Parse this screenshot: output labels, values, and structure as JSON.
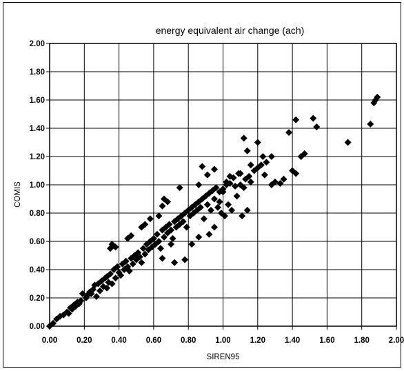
{
  "chart_data": {
    "type": "scatter",
    "title": "energy equivalent air change (ach)",
    "xlabel": "SIREN95",
    "ylabel": "COMIS",
    "xlim": [
      0,
      2.0
    ],
    "ylim": [
      0,
      2.0
    ],
    "x_ticks": [
      "0.00",
      "0.20",
      "0.40",
      "0.60",
      "0.80",
      "1.00",
      "1.20",
      "1.40",
      "1.60",
      "1.80",
      "2.00"
    ],
    "y_ticks": [
      "0.00",
      "0.20",
      "0.40",
      "0.60",
      "0.80",
      "1.00",
      "1.20",
      "1.40",
      "1.60",
      "1.80",
      "2.00"
    ],
    "grid": true,
    "legend": "none",
    "marker": "diamond",
    "marker_color": "#000000",
    "series": [
      {
        "points": [
          [
            0.0,
            0.0
          ],
          [
            0.02,
            0.02
          ],
          [
            0.04,
            0.05
          ],
          [
            0.06,
            0.07
          ],
          [
            0.08,
            0.08
          ],
          [
            0.1,
            0.1
          ],
          [
            0.12,
            0.13
          ],
          [
            0.14,
            0.15
          ],
          [
            0.16,
            0.17
          ],
          [
            0.18,
            0.18
          ],
          [
            0.19,
            0.23
          ],
          [
            0.21,
            0.2
          ],
          [
            0.23,
            0.24
          ],
          [
            0.25,
            0.26
          ],
          [
            0.27,
            0.21
          ],
          [
            0.28,
            0.3
          ],
          [
            0.3,
            0.32
          ],
          [
            0.31,
            0.28
          ],
          [
            0.33,
            0.35
          ],
          [
            0.34,
            0.31
          ],
          [
            0.35,
            0.37
          ],
          [
            0.36,
            0.3
          ],
          [
            0.37,
            0.4
          ],
          [
            0.38,
            0.34
          ],
          [
            0.39,
            0.42
          ],
          [
            0.4,
            0.38
          ],
          [
            0.41,
            0.36
          ],
          [
            0.42,
            0.44
          ],
          [
            0.43,
            0.4
          ],
          [
            0.44,
            0.46
          ],
          [
            0.45,
            0.42
          ],
          [
            0.46,
            0.39
          ],
          [
            0.47,
            0.48
          ],
          [
            0.48,
            0.44
          ],
          [
            0.49,
            0.5
          ],
          [
            0.5,
            0.47
          ],
          [
            0.51,
            0.52
          ],
          [
            0.52,
            0.49
          ],
          [
            0.53,
            0.45
          ],
          [
            0.54,
            0.55
          ],
          [
            0.55,
            0.51
          ],
          [
            0.56,
            0.58
          ],
          [
            0.57,
            0.54
          ],
          [
            0.58,
            0.6
          ],
          [
            0.59,
            0.56
          ],
          [
            0.6,
            0.62
          ],
          [
            0.61,
            0.58
          ],
          [
            0.62,
            0.65
          ],
          [
            0.63,
            0.6
          ],
          [
            0.64,
            0.55
          ],
          [
            0.65,
            0.68
          ],
          [
            0.66,
            0.63
          ],
          [
            0.67,
            0.7
          ],
          [
            0.68,
            0.66
          ],
          [
            0.69,
            0.72
          ],
          [
            0.7,
            0.68
          ],
          [
            0.71,
            0.62
          ],
          [
            0.72,
            0.74
          ],
          [
            0.73,
            0.7
          ],
          [
            0.74,
            0.76
          ],
          [
            0.75,
            0.72
          ],
          [
            0.76,
            0.78
          ],
          [
            0.77,
            0.74
          ],
          [
            0.78,
            0.8
          ],
          [
            0.79,
            0.7
          ],
          [
            0.8,
            0.82
          ],
          [
            0.81,
            0.78
          ],
          [
            0.82,
            0.84
          ],
          [
            0.83,
            0.8
          ],
          [
            0.84,
            0.86
          ],
          [
            0.85,
            0.82
          ],
          [
            0.86,
            0.88
          ],
          [
            0.87,
            0.84
          ],
          [
            0.88,
            0.9
          ],
          [
            0.89,
            0.76
          ],
          [
            0.9,
            0.92
          ],
          [
            0.91,
            0.86
          ],
          [
            0.92,
            0.94
          ],
          [
            0.93,
            0.82
          ],
          [
            0.94,
            0.96
          ],
          [
            0.95,
            0.9
          ],
          [
            0.96,
            0.98
          ],
          [
            0.97,
            0.84
          ],
          [
            0.98,
            0.88
          ],
          [
            0.99,
            0.8
          ],
          [
            1.0,
            0.95
          ],
          [
            1.01,
            0.78
          ],
          [
            1.02,
            1.02
          ],
          [
            1.03,
            0.86
          ],
          [
            1.04,
            1.06
          ],
          [
            0.35,
            0.55
          ],
          [
            0.36,
            0.58
          ],
          [
            0.38,
            0.56
          ],
          [
            0.45,
            0.62
          ],
          [
            0.47,
            0.64
          ],
          [
            0.53,
            0.7
          ],
          [
            0.55,
            0.72
          ],
          [
            0.58,
            0.76
          ],
          [
            0.63,
            0.78
          ],
          [
            0.65,
            0.85
          ],
          [
            0.66,
            0.9
          ],
          [
            0.68,
            0.88
          ],
          [
            0.75,
            0.98
          ],
          [
            0.86,
            1.0
          ],
          [
            0.88,
            1.13
          ],
          [
            0.91,
            1.07
          ],
          [
            0.95,
            1.11
          ],
          [
            0.98,
            0.95
          ],
          [
            0.65,
            0.48
          ],
          [
            0.7,
            0.58
          ],
          [
            0.72,
            0.45
          ],
          [
            0.78,
            0.47
          ],
          [
            0.82,
            0.58
          ],
          [
            0.86,
            0.63
          ],
          [
            0.92,
            0.65
          ],
          [
            0.95,
            0.7
          ],
          [
            1.05,
            0.82
          ],
          [
            1.08,
            0.92
          ],
          [
            1.1,
            1.0
          ],
          [
            1.12,
            0.98
          ],
          [
            1.13,
            1.04
          ],
          [
            1.15,
            1.06
          ],
          [
            1.16,
            1.02
          ],
          [
            1.18,
            1.1
          ],
          [
            1.2,
            1.12
          ],
          [
            1.22,
            1.14
          ],
          [
            1.25,
            1.16
          ],
          [
            1.28,
            1.2
          ],
          [
            1.3,
            1.02
          ],
          [
            1.33,
            1.01
          ],
          [
            1.35,
            1.04
          ],
          [
            1.38,
            1.37
          ],
          [
            1.4,
            1.1
          ],
          [
            1.42,
            1.46
          ],
          [
            1.45,
            1.2
          ],
          [
            1.47,
            1.22
          ],
          [
            1.52,
            1.47
          ],
          [
            1.54,
            1.41
          ],
          [
            1.72,
            1.3
          ],
          [
            1.85,
            1.43
          ],
          [
            1.87,
            1.58
          ],
          [
            1.88,
            1.6
          ],
          [
            1.89,
            1.62
          ],
          [
            1.12,
            1.33
          ],
          [
            1.14,
            1.24
          ],
          [
            1.2,
            1.3
          ],
          [
            1.07,
            0.99
          ],
          [
            1.09,
            1.08
          ],
          [
            1.11,
            0.78
          ],
          [
            1.14,
            0.82
          ],
          [
            1.1,
            1.08
          ],
          [
            1.06,
            1.05
          ],
          [
            1.04,
            1.01
          ],
          [
            1.02,
            1.0
          ],
          [
            1.0,
            0.97
          ],
          [
            1.16,
            1.14
          ],
          [
            1.23,
            1.2
          ],
          [
            1.28,
            1.0
          ],
          [
            1.24,
            1.07
          ],
          [
            1.42,
            1.08
          ],
          [
            0.26,
            0.29
          ],
          [
            0.32,
            0.34
          ],
          [
            0.33,
            0.27
          ],
          [
            0.29,
            0.25
          ],
          [
            0.24,
            0.23
          ],
          [
            0.22,
            0.22
          ],
          [
            0.17,
            0.16
          ],
          [
            0.15,
            0.14
          ],
          [
            0.13,
            0.12
          ],
          [
            0.11,
            0.09
          ]
        ]
      }
    ]
  }
}
